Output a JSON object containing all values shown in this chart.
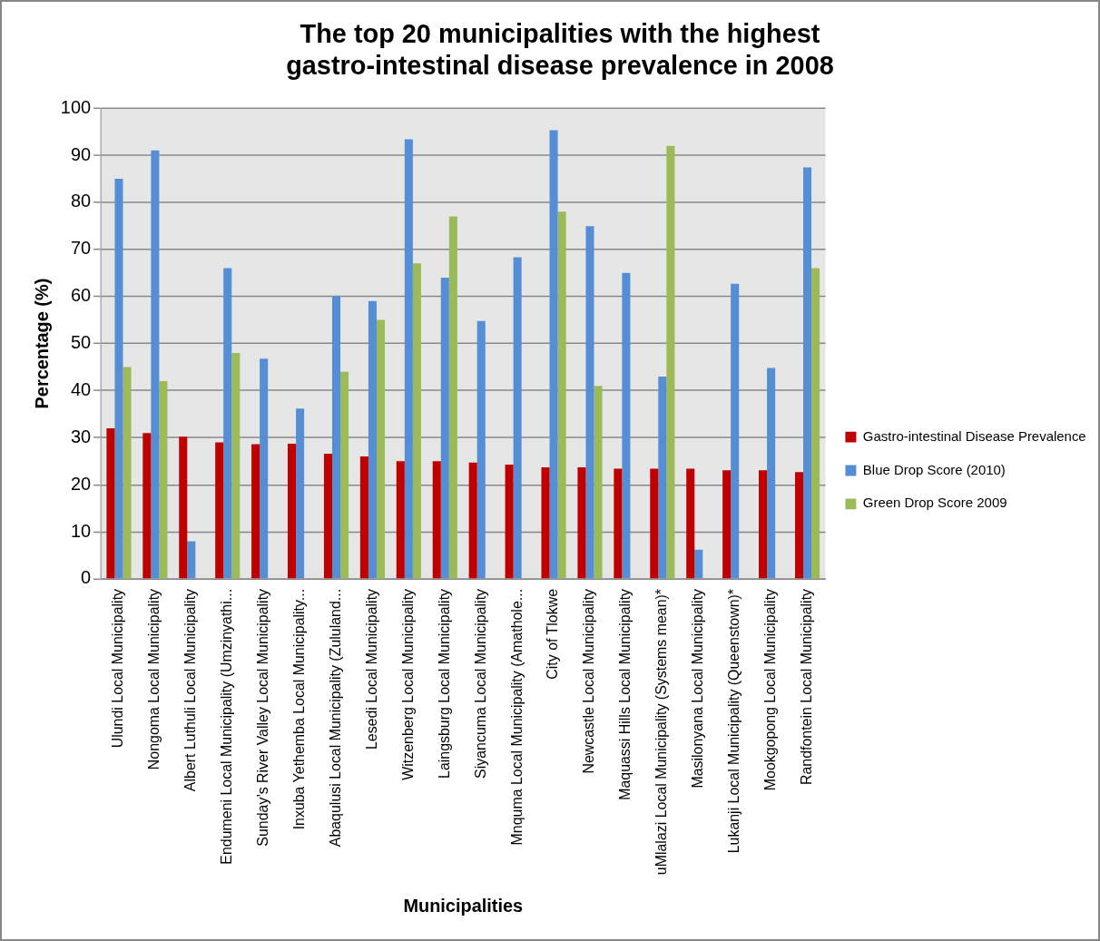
{
  "chart_data": {
    "type": "bar",
    "title": "The top 20 municipalities with the highest gastro-intestinal disease prevalence in 2008",
    "xlabel": "Municipalities",
    "ylabel": "Percentage (%)",
    "categories": [
      "Ulundi Local Municipality",
      "Nongoma Local Municipality",
      "Albert Luthuli Local Municipality",
      "Endumeni Local Municipality (Umzinyathi...",
      "Sunday’s River Valley Local Municipality",
      "Inxuba Yethemba Local Municipality...",
      "Abaqulusi Local Municipality (Zululand...",
      "Lesedi Local Municipality",
      "Witzenberg Local Municipality",
      "Laingsburg Local Municipality",
      "Siyancuma Local Municipality",
      "Mnquma Local Municipality (Amathole...",
      "City of Tlokwe",
      "Newcastle Local Municipality",
      "Maquassi Hills Local Municipality",
      "uMlalazi Local Municipality (Systems mean)*",
      "Masilonyana Local Municipality",
      "Lukanji Local Municipality (Queenstown)*",
      "Mookgopong Local Municipality",
      "Randfontein Local Municipality"
    ],
    "series": [
      {
        "name": "Gastro-intestinal Disease Prevalence",
        "color": "#c00000",
        "values": [
          32,
          31,
          30.2,
          29,
          28.6,
          28.7,
          26.6,
          26,
          25,
          25,
          24.7,
          24.3,
          23.7,
          23.7,
          23.4,
          23.4,
          23.4,
          23.1,
          23.1,
          22.7
        ]
      },
      {
        "name": "Blue Drop Score (2010)",
        "color": "#558ed5",
        "values": [
          85,
          91,
          8,
          66,
          46.8,
          36.2,
          60,
          59,
          93.4,
          64,
          54.8,
          68.3,
          95.3,
          74.9,
          65,
          43,
          6.2,
          62.7,
          44.8,
          87.4
        ]
      },
      {
        "name": "Green Drop Score 2009",
        "color": "#9bbb59",
        "values": [
          45,
          42,
          null,
          48,
          null,
          null,
          44,
          55,
          67,
          77,
          null,
          null,
          78,
          41,
          null,
          92,
          null,
          null,
          null,
          66
        ]
      }
    ],
    "ylim": [
      0,
      100
    ],
    "yticks": [
      0,
      10,
      20,
      30,
      40,
      50,
      60,
      70,
      80,
      90,
      100
    ],
    "grid": "y",
    "legend": "right"
  }
}
